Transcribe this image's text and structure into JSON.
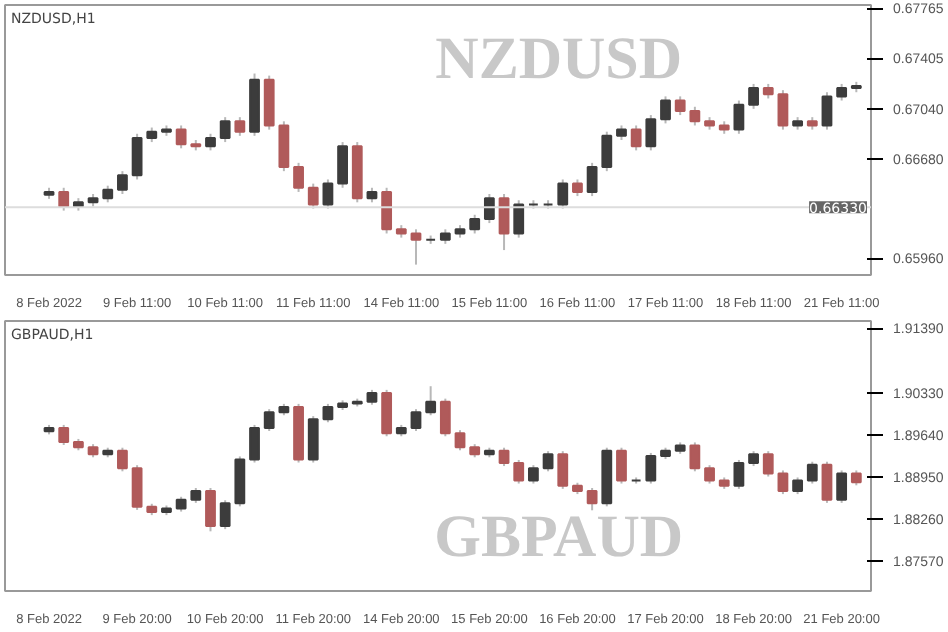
{
  "chart_data": [
    {
      "type": "candlestick",
      "title": "NZDUSD,H1",
      "annotations": [
        "NZDUSD"
      ],
      "grid": false,
      "colors": [
        "#3c3c3c",
        "#b05a5a",
        "#3c3c3c",
        "#3c3c3c",
        "#3c3c3c",
        "#3c3c3c",
        "#3c3c3c",
        "#3c3c3c",
        "#3c3c3c",
        "#b05a5a",
        "#b05a5a",
        "#3c3c3c",
        "#3c3c3c",
        "#b05a5a",
        "#3c3c3c",
        "#b05a5a",
        "#b05a5a",
        "#b05a5a",
        "#b05a5a",
        "#3c3c3c",
        "#3c3c3c",
        "#b05a5a",
        "#3c3c3c",
        "#b05a5a",
        "#b05a5a",
        "#b05a5a",
        "#3c3c3c",
        "#3c3c3c",
        "#3c3c3c",
        "#3c3c3c",
        "#3c3c3c",
        "#b05a5a",
        "#3c3c3c",
        "#3c3c3c",
        "#3c3c3c",
        "#3c3c3c",
        "#b05a5a",
        "#3c3c3c",
        "#3c3c3c",
        "#3c3c3c",
        "#b05a5a",
        "#3c3c3c",
        "#3c3c3c",
        "#b05a5a",
        "#b05a5a",
        "#b05a5a",
        "#b05a5a",
        "#3c3c3c",
        "#3c3c3c",
        "#b05a5a",
        "#b05a5a",
        "#3c3c3c",
        "#b05a5a",
        "#3c3c3c",
        "#3c3c3c",
        "#3c3c3c"
      ],
      "categories": [
        "8 Feb 2022",
        null,
        null,
        null,
        null,
        null,
        "9 Feb 11:00",
        null,
        null,
        null,
        null,
        null,
        "10 Feb 11:00",
        null,
        null,
        null,
        null,
        null,
        "11 Feb 11:00",
        null,
        null,
        null,
        null,
        null,
        "14 Feb 11:00",
        null,
        null,
        null,
        null,
        null,
        "15 Feb 11:00",
        null,
        null,
        null,
        null,
        null,
        "16 Feb 11:00",
        null,
        null,
        null,
        null,
        null,
        "17 Feb 11:00",
        null,
        null,
        null,
        null,
        null,
        "18 Feb 11:00",
        null,
        null,
        null,
        null,
        null,
        "21 Feb 11:00",
        null
      ],
      "ylim": [
        0.6584,
        0.6779
      ],
      "yticks": [
        {
          "value": 0.6596,
          "label": "0.65960"
        },
        {
          "value": 0.6668,
          "label": "0.66680"
        },
        {
          "value": 0.6704,
          "label": "0.67040"
        },
        {
          "value": 0.67405,
          "label": "0.67405"
        },
        {
          "value": 0.67765,
          "label": "0.67765"
        }
      ],
      "ref_lines": [
        {
          "axis": "y",
          "value": 0.6633,
          "label": "0.66330",
          "color": "#dddddd"
        }
      ],
      "ohlc": [
        [
          0.6642,
          0.6647,
          0.6639,
          0.6644
        ],
        [
          0.6644,
          0.6647,
          0.66305,
          0.66335
        ],
        [
          0.66335,
          0.66395,
          0.66305,
          0.66365
        ],
        [
          0.66365,
          0.66425,
          0.66335,
          0.66395
        ],
        [
          0.66395,
          0.66485,
          0.66365,
          0.66455
        ],
        [
          0.66455,
          0.6659,
          0.66425,
          0.6656
        ],
        [
          0.6656,
          0.6686,
          0.6653,
          0.6683
        ],
        [
          0.6683,
          0.66905,
          0.668,
          0.66875
        ],
        [
          0.66875,
          0.6692,
          0.66845,
          0.6689
        ],
        [
          0.6689,
          0.6692,
          0.66755,
          0.66785
        ],
        [
          0.66785,
          0.66815,
          0.6674,
          0.6677
        ],
        [
          0.6677,
          0.6686,
          0.6674,
          0.6683
        ],
        [
          0.6683,
          0.6698,
          0.668,
          0.6695
        ],
        [
          0.6695,
          0.6698,
          0.66845,
          0.66875
        ],
        [
          0.66875,
          0.67295,
          0.66845,
          0.6725
        ],
        [
          0.6725,
          0.6728,
          0.6689,
          0.6692
        ],
        [
          0.6692,
          0.6695,
          0.6659,
          0.6662
        ],
        [
          0.6662,
          0.6665,
          0.6644,
          0.6647
        ],
        [
          0.6647,
          0.665,
          0.6632,
          0.6635
        ],
        [
          0.6635,
          0.6653,
          0.6632,
          0.665
        ],
        [
          0.665,
          0.668,
          0.6647,
          0.6677
        ],
        [
          0.6677,
          0.668,
          0.66365,
          0.66395
        ],
        [
          0.66395,
          0.6647,
          0.66365,
          0.6644
        ],
        [
          0.6644,
          0.6647,
          0.6614,
          0.6617
        ],
        [
          0.6617,
          0.662,
          0.6611,
          0.6614
        ],
        [
          0.6614,
          0.6617,
          0.65915,
          0.66095
        ],
        [
          0.66095,
          0.66125,
          0.66065,
          0.66095
        ],
        [
          0.66095,
          0.6617,
          0.66065,
          0.6614
        ],
        [
          0.6614,
          0.662,
          0.6611,
          0.6617
        ],
        [
          0.6617,
          0.66275,
          0.6614,
          0.66245
        ],
        [
          0.66245,
          0.66425,
          0.66215,
          0.66395
        ],
        [
          0.66395,
          0.66425,
          0.6602,
          0.6614
        ],
        [
          0.6614,
          0.6638,
          0.6611,
          0.6635
        ],
        [
          0.6635,
          0.6638,
          0.6632,
          0.6635
        ],
        [
          0.6635,
          0.6638,
          0.6632,
          0.6635
        ],
        [
          0.6635,
          0.6653,
          0.6632,
          0.665
        ],
        [
          0.665,
          0.6653,
          0.6641,
          0.6644
        ],
        [
          0.6644,
          0.6665,
          0.6641,
          0.6662
        ],
        [
          0.6662,
          0.66875,
          0.6659,
          0.66845
        ],
        [
          0.66845,
          0.6692,
          0.66815,
          0.6689
        ],
        [
          0.6689,
          0.6692,
          0.6674,
          0.6677
        ],
        [
          0.6677,
          0.66995,
          0.6674,
          0.66965
        ],
        [
          0.66965,
          0.6713,
          0.66935,
          0.671
        ],
        [
          0.671,
          0.6713,
          0.66995,
          0.67025
        ],
        [
          0.67025,
          0.67055,
          0.6692,
          0.6695
        ],
        [
          0.6695,
          0.6698,
          0.6689,
          0.6692
        ],
        [
          0.6692,
          0.6695,
          0.6686,
          0.6689
        ],
        [
          0.6689,
          0.671,
          0.6686,
          0.6707
        ],
        [
          0.6707,
          0.6722,
          0.6704,
          0.6719
        ],
        [
          0.6719,
          0.6722,
          0.67115,
          0.67145
        ],
        [
          0.67145,
          0.67175,
          0.6689,
          0.6692
        ],
        [
          0.6692,
          0.6698,
          0.6689,
          0.6695
        ],
        [
          0.6695,
          0.6698,
          0.6689,
          0.6692
        ],
        [
          0.6692,
          0.6716,
          0.6689,
          0.6713
        ],
        [
          0.6713,
          0.6722,
          0.671,
          0.6719
        ],
        [
          0.6719,
          0.67235,
          0.6716,
          0.67205
        ]
      ]
    },
    {
      "type": "candlestick",
      "title": "GBPAUD,H1",
      "annotations": [
        "GBPAUD"
      ],
      "grid": false,
      "colors": [
        "#3c3c3c",
        "#b05a5a",
        "#b05a5a",
        "#b05a5a",
        "#3c3c3c",
        "#b05a5a",
        "#b05a5a",
        "#b05a5a",
        "#3c3c3c",
        "#3c3c3c",
        "#3c3c3c",
        "#b05a5a",
        "#3c3c3c",
        "#3c3c3c",
        "#3c3c3c",
        "#3c3c3c",
        "#3c3c3c",
        "#b05a5a",
        "#3c3c3c",
        "#3c3c3c",
        "#3c3c3c",
        "#3c3c3c",
        "#3c3c3c",
        "#b05a5a",
        "#3c3c3c",
        "#3c3c3c",
        "#3c3c3c",
        "#b05a5a",
        "#b05a5a",
        "#b05a5a",
        "#3c3c3c",
        "#b05a5a",
        "#b05a5a",
        "#3c3c3c",
        "#3c3c3c",
        "#b05a5a",
        "#b05a5a",
        "#b05a5a",
        "#3c3c3c",
        "#b05a5a",
        "#3c3c3c",
        "#3c3c3c",
        "#3c3c3c",
        "#3c3c3c",
        "#b05a5a",
        "#b05a5a",
        "#b05a5a",
        "#3c3c3c",
        "#3c3c3c",
        "#b05a5a",
        "#b05a5a",
        "#3c3c3c",
        "#3c3c3c",
        "#b05a5a",
        "#3c3c3c",
        "#b05a5a"
      ],
      "categories": [
        "8 Feb 2022",
        null,
        null,
        null,
        null,
        null,
        "9 Feb 20:00",
        null,
        null,
        null,
        null,
        null,
        "10 Feb 20:00",
        null,
        null,
        null,
        null,
        null,
        "11 Feb 20:00",
        null,
        null,
        null,
        null,
        null,
        "14 Feb 20:00",
        null,
        null,
        null,
        null,
        null,
        "15 Feb 20:00",
        null,
        null,
        null,
        null,
        null,
        "16 Feb 20:00",
        null,
        null,
        null,
        null,
        null,
        "17 Feb 20:00",
        null,
        null,
        null,
        null,
        null,
        "18 Feb 20:00",
        null,
        null,
        null,
        null,
        null,
        "21 Feb 20:00",
        null
      ],
      "ylim": [
        1.8708,
        1.9151
      ],
      "yticks": [
        {
          "value": 1.8757,
          "label": "1.87570"
        },
        {
          "value": 1.8826,
          "label": "1.88260"
        },
        {
          "value": 1.8895,
          "label": "1.88950"
        },
        {
          "value": 1.8964,
          "label": "1.89640"
        },
        {
          "value": 1.9033,
          "label": "1.90330"
        },
        {
          "value": 1.9139,
          "label": "1.91390"
        }
      ],
      "ohlc": [
        [
          1.897,
          1.89805,
          1.8965,
          1.89755
        ],
        [
          1.89755,
          1.89805,
          1.89475,
          1.89525
        ],
        [
          1.89525,
          1.89575,
          1.89389,
          1.89439
        ],
        [
          1.89439,
          1.89489,
          1.89274,
          1.89324
        ],
        [
          1.89324,
          1.89431,
          1.89274,
          1.89381
        ],
        [
          1.89381,
          1.89431,
          1.89044,
          1.89094
        ],
        [
          1.89094,
          1.89144,
          1.88411,
          1.88461
        ],
        [
          1.88461,
          1.88511,
          1.88325,
          1.88375
        ],
        [
          1.88375,
          1.88483,
          1.88325,
          1.88433
        ],
        [
          1.88433,
          1.88626,
          1.88383,
          1.88576
        ],
        [
          1.88576,
          1.8877,
          1.88526,
          1.8872
        ],
        [
          1.8872,
          1.8877,
          1.88059,
          1.88145
        ],
        [
          1.88145,
          1.88569,
          1.88095,
          1.88519
        ],
        [
          1.88519,
          1.89288,
          1.88469,
          1.89238
        ],
        [
          1.89238,
          1.89805,
          1.89188,
          1.89755
        ],
        [
          1.89755,
          1.90064,
          1.89705,
          1.90014
        ],
        [
          1.90014,
          1.9015,
          1.89964,
          1.901
        ],
        [
          1.901,
          1.9015,
          1.89188,
          1.89238
        ],
        [
          1.89238,
          1.89949,
          1.89188,
          1.89899
        ],
        [
          1.89899,
          1.9015,
          1.89849,
          1.901
        ],
        [
          1.901,
          1.90208,
          1.9005,
          1.90158
        ],
        [
          1.90158,
          1.90236,
          1.90108,
          1.90186
        ],
        [
          1.90186,
          1.9038,
          1.90136,
          1.9033
        ],
        [
          1.9033,
          1.9038,
          1.89619,
          1.89669
        ],
        [
          1.89669,
          1.89805,
          1.89619,
          1.89755
        ],
        [
          1.89755,
          1.90064,
          1.89705,
          1.90014
        ],
        [
          1.90014,
          1.9044,
          1.89964,
          1.90186
        ],
        [
          1.90186,
          1.90236,
          1.89619,
          1.89669
        ],
        [
          1.89669,
          1.89719,
          1.89389,
          1.89439
        ],
        [
          1.89439,
          1.89489,
          1.89274,
          1.89324
        ],
        [
          1.89324,
          1.89431,
          1.89274,
          1.89381
        ],
        [
          1.89381,
          1.89431,
          1.8913,
          1.8918
        ],
        [
          1.8918,
          1.8923,
          1.88843,
          1.88893
        ],
        [
          1.88893,
          1.89144,
          1.88843,
          1.89094
        ],
        [
          1.89094,
          1.89374,
          1.89044,
          1.89324
        ],
        [
          1.89324,
          1.89374,
          1.88756,
          1.88806
        ],
        [
          1.88806,
          1.88856,
          1.8867,
          1.8872
        ],
        [
          1.8872,
          1.8877,
          1.88404,
          1.88519
        ],
        [
          1.88519,
          1.89431,
          1.88469,
          1.89381
        ],
        [
          1.89381,
          1.89431,
          1.88843,
          1.88893
        ],
        [
          1.88893,
          1.88943,
          1.88843,
          1.88893
        ],
        [
          1.88893,
          1.89345,
          1.88843,
          1.89295
        ],
        [
          1.89295,
          1.89431,
          1.89245,
          1.89381
        ],
        [
          1.89381,
          1.89518,
          1.89331,
          1.89468
        ],
        [
          1.89468,
          1.89518,
          1.89044,
          1.89094
        ],
        [
          1.89094,
          1.89144,
          1.88843,
          1.88893
        ],
        [
          1.88893,
          1.88943,
          1.88756,
          1.88806
        ],
        [
          1.88806,
          1.8923,
          1.88756,
          1.8918
        ],
        [
          1.8918,
          1.89374,
          1.8913,
          1.89324
        ],
        [
          1.89324,
          1.89374,
          1.88958,
          1.89008
        ],
        [
          1.89008,
          1.89058,
          1.8867,
          1.8872
        ],
        [
          1.8872,
          1.88943,
          1.8867,
          1.88893
        ],
        [
          1.88893,
          1.89201,
          1.88843,
          1.89151
        ],
        [
          1.89151,
          1.89201,
          1.88526,
          1.88576
        ],
        [
          1.88576,
          1.89058,
          1.88526,
          1.89008
        ],
        [
          1.89008,
          1.89058,
          1.88814,
          1.88864
        ]
      ]
    }
  ]
}
